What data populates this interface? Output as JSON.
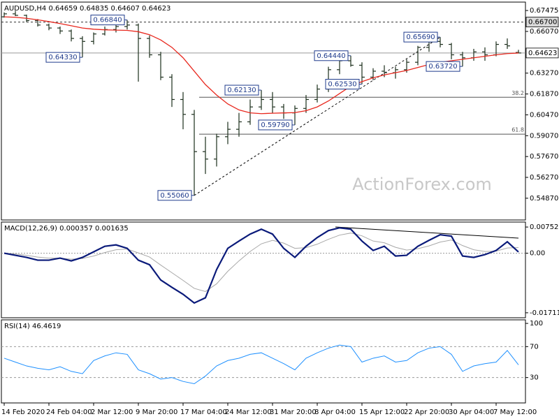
{
  "chart_data": [
    {
      "type": "ohlc",
      "title": "AUDUSD,H4  0.64659 0.64835 0.64607 0.64623",
      "watermark": "ActionForex.com",
      "color": "#1c2e1c",
      "ylim": [
        0.5341,
        0.6804
      ],
      "yticks": [
        {
          "value": 0.67475,
          "label": "0.67475"
        },
        {
          "value": 0.6607,
          "label": "0.66070"
        },
        {
          "value": 0.6327,
          "label": "0.63270"
        },
        {
          "value": 0.6187,
          "label": "0.61870"
        },
        {
          "value": 0.6047,
          "label": "0.60470"
        },
        {
          "value": 0.5907,
          "label": "0.59070"
        },
        {
          "value": 0.5767,
          "label": "0.57670"
        },
        {
          "value": 0.5627,
          "label": "0.56270"
        },
        {
          "value": 0.5487,
          "label": "0.54870"
        }
      ],
      "open": [
        0.6705,
        0.6725,
        0.6715,
        0.668,
        0.665,
        0.663,
        0.661,
        0.656,
        0.654,
        0.659,
        0.662,
        0.664,
        0.665,
        0.656,
        0.645,
        0.63,
        0.615,
        0.605,
        0.58,
        0.575,
        0.59,
        0.595,
        0.6,
        0.61,
        0.615,
        0.61,
        0.606,
        0.609,
        0.615,
        0.622,
        0.635,
        0.641,
        0.638,
        0.63,
        0.634,
        0.633,
        0.635,
        0.64,
        0.65,
        0.654,
        0.652,
        0.645,
        0.643,
        0.647,
        0.645,
        0.652,
        0.64659
      ],
      "high": [
        0.6735,
        0.6745,
        0.672,
        0.669,
        0.666,
        0.664,
        0.662,
        0.6575,
        0.66,
        0.664,
        0.666,
        0.6684,
        0.666,
        0.658,
        0.647,
        0.632,
        0.62,
        0.608,
        0.59,
        0.592,
        0.6,
        0.606,
        0.615,
        0.6213,
        0.62,
        0.612,
        0.611,
        0.618,
        0.625,
        0.637,
        0.643,
        0.6444,
        0.64,
        0.636,
        0.638,
        0.637,
        0.642,
        0.651,
        0.655,
        0.6569,
        0.653,
        0.647,
        0.649,
        0.65,
        0.654,
        0.656,
        0.64835
      ],
      "low": [
        0.67,
        0.671,
        0.667,
        0.664,
        0.6615,
        0.659,
        0.654,
        0.6433,
        0.652,
        0.658,
        0.66,
        0.662,
        0.627,
        0.643,
        0.628,
        0.61,
        0.595,
        0.5506,
        0.565,
        0.57,
        0.585,
        0.59,
        0.598,
        0.608,
        0.606,
        0.602,
        0.5979,
        0.606,
        0.613,
        0.62,
        0.632,
        0.637,
        0.6253,
        0.628,
        0.63,
        0.629,
        0.633,
        0.638,
        0.647,
        0.65,
        0.642,
        0.6372,
        0.641,
        0.641,
        0.644,
        0.649,
        0.64607
      ],
      "close": [
        0.6725,
        0.6715,
        0.668,
        0.665,
        0.663,
        0.661,
        0.656,
        0.654,
        0.659,
        0.662,
        0.664,
        0.665,
        0.656,
        0.645,
        0.63,
        0.615,
        0.605,
        0.58,
        0.575,
        0.59,
        0.595,
        0.6,
        0.61,
        0.615,
        0.61,
        0.606,
        0.609,
        0.615,
        0.622,
        0.635,
        0.641,
        0.638,
        0.63,
        0.634,
        0.633,
        0.635,
        0.64,
        0.65,
        0.654,
        0.652,
        0.645,
        0.643,
        0.647,
        0.645,
        0.652,
        0.651,
        0.64623
      ],
      "moving_average": {
        "color": "#e8281e",
        "values": [
          0.6705,
          0.6702,
          0.6695,
          0.6685,
          0.6673,
          0.666,
          0.6645,
          0.663,
          0.6622,
          0.6618,
          0.6616,
          0.6614,
          0.6605,
          0.6585,
          0.655,
          0.65,
          0.643,
          0.634,
          0.625,
          0.618,
          0.612,
          0.608,
          0.606,
          0.6055,
          0.6058,
          0.606,
          0.6062,
          0.6075,
          0.61,
          0.614,
          0.619,
          0.624,
          0.627,
          0.6295,
          0.6315,
          0.633,
          0.6345,
          0.6365,
          0.6385,
          0.64,
          0.641,
          0.642,
          0.643,
          0.644,
          0.645,
          0.6458,
          0.6462
        ]
      },
      "levels": [
        {
          "value": 0.667,
          "label": "0.66700",
          "style": "dashed"
        },
        {
          "value": 0.64623,
          "label": "0.64623",
          "style": "solid"
        }
      ],
      "fib_levels": [
        {
          "value": 0.6165,
          "label": "38.2"
        },
        {
          "value": 0.5917,
          "label": "61.8"
        }
      ],
      "annotations": [
        {
          "value": 0.6684,
          "label": "0.66840"
        },
        {
          "value": 0.6433,
          "label": "0.64330"
        },
        {
          "value": 0.6213,
          "label": "0.62130"
        },
        {
          "value": 0.5979,
          "label": "0.59790"
        },
        {
          "value": 0.5506,
          "label": "0.55060"
        },
        {
          "value": 0.6444,
          "label": "0.64440"
        },
        {
          "value": 0.6253,
          "label": "0.62530"
        },
        {
          "value": 0.6569,
          "label": "0.65690"
        },
        {
          "value": 0.6372,
          "label": "0.63720"
        }
      ]
    },
    {
      "type": "line",
      "title": "MACD(12,26,9) 0.000357 0.001635",
      "ylim": [
        -0.01854,
        0.00895
      ],
      "yticks": [
        {
          "value": 0.007526,
          "label": "0.007526"
        },
        {
          "value": 0,
          "label": "0.00"
        },
        {
          "value": -0.017112,
          "label": "-0.017112"
        }
      ],
      "zero_line": true,
      "series": [
        {
          "color": "#0a1a7a",
          "values": [
            0,
            -0.0006,
            -0.0012,
            -0.002,
            -0.002,
            -0.0014,
            -0.0022,
            -0.0012,
            0.0004,
            0.002,
            0.0024,
            0.0014,
            -0.002,
            -0.0033,
            -0.0077,
            -0.0098,
            -0.0118,
            -0.0143,
            -0.0128,
            -0.0047,
            0.0014,
            0.0035,
            0.0055,
            0.0069,
            0.0055,
            0.0014,
            -0.0012,
            0.002,
            0.0045,
            0.0065,
            0.0073,
            0.0069,
            0.0035,
            0.0008,
            0.002,
            -0.0008,
            -0.0006,
            0.002,
            0.0037,
            0.0053,
            0.0049,
            -0.0008,
            -0.0012,
            -0.0004,
            0.0008,
            0.0033,
            0.000357
          ]
        },
        {
          "color": "#a8a8a8",
          "values": [
            0,
            -0.0002,
            -0.0006,
            -0.0011,
            -0.0014,
            -0.0014,
            -0.0017,
            -0.0015,
            -0.0008,
            0.0002,
            0.001,
            0.0012,
            0.0001,
            -0.0011,
            -0.0034,
            -0.0056,
            -0.0078,
            -0.0101,
            -0.011,
            -0.0088,
            -0.0052,
            -0.0022,
            0.0005,
            0.0027,
            0.0037,
            0.0029,
            0.0014,
            0.0016,
            0.0026,
            0.004,
            0.0052,
            0.0058,
            0.005,
            0.0035,
            0.003,
            0.0017,
            0.0009,
            0.0013,
            0.0021,
            0.0032,
            0.0038,
            0.0022,
            0.001,
            0.0005,
            0.0006,
            0.0015,
            0.001635
          ]
        }
      ]
    },
    {
      "type": "line",
      "title": "RSI(14) 46.4619",
      "ylim": [
        -2.8,
        104.6
      ],
      "yticks": [
        100,
        70,
        30
      ],
      "levels": [
        70,
        30
      ],
      "series": [
        {
          "color": "#1e90ff",
          "values": [
            55,
            50,
            45,
            42,
            40,
            44,
            38,
            35,
            52,
            58,
            62,
            60,
            40,
            35,
            28,
            30,
            25,
            22,
            32,
            45,
            52,
            55,
            60,
            62,
            55,
            48,
            40,
            55,
            62,
            68,
            72,
            70,
            50,
            55,
            58,
            50,
            52,
            62,
            68,
            70,
            60,
            38,
            45,
            48,
            50,
            65,
            46.4619
          ]
        }
      ],
      "categories": [
        "14 Feb 2020",
        null,
        null,
        null,
        "24 Feb 04:00",
        null,
        null,
        null,
        "2 Mar 12:00",
        null,
        null,
        null,
        "9 Mar 20:00",
        null,
        null,
        null,
        "17 Mar 04:00",
        null,
        null,
        null,
        "24 Mar 12:00",
        null,
        null,
        null,
        "31 Mar 20:00",
        null,
        null,
        null,
        "8 Apr 04:00",
        null,
        null,
        null,
        "15 Apr 12:00",
        null,
        null,
        null,
        "22 Apr 20:00",
        null,
        null,
        null,
        "30 Apr 04:00",
        null,
        null,
        null,
        "7 May 12:00",
        null,
        null
      ]
    }
  ]
}
